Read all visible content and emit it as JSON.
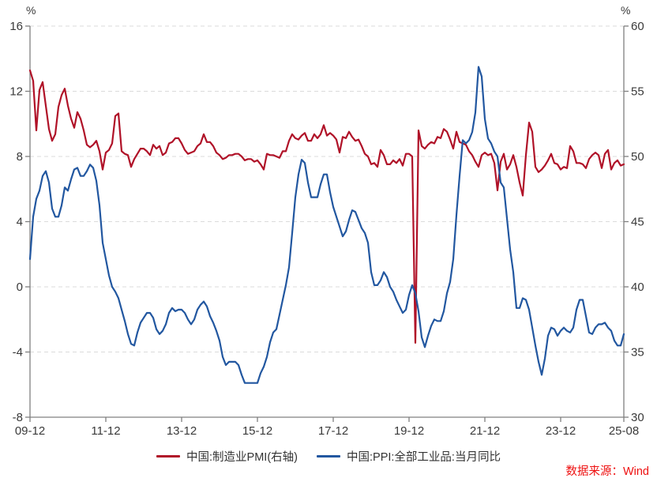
{
  "footer": {
    "source": "数据来源：Wind",
    "color": "#EE1111"
  },
  "chart_data": {
    "type": "line",
    "title": "",
    "x_start": "2009-12",
    "x_end": "2025-08",
    "x_frequency": "monthly",
    "grid": "horizontal-dashed",
    "legend_position": "bottom-center",
    "colors": {
      "grid": "#DBDBDB",
      "axis": "#808080",
      "tick_text": "#3a3a3a"
    },
    "left_axis": {
      "unit": "%",
      "min": -8,
      "max": 16,
      "ticks": [
        16,
        12,
        8,
        4,
        0,
        -4,
        -8
      ]
    },
    "right_axis": {
      "unit": "%",
      "min": 30,
      "max": 60,
      "ticks": [
        60,
        55,
        50,
        45,
        40,
        35,
        30
      ]
    },
    "x_ticks": [
      {
        "label": "09-12",
        "index": 0
      },
      {
        "label": "11-12",
        "index": 24
      },
      {
        "label": "13-12",
        "index": 48
      },
      {
        "label": "15-12",
        "index": 72
      },
      {
        "label": "17-12",
        "index": 96
      },
      {
        "label": "19-12",
        "index": 120
      },
      {
        "label": "21-12",
        "index": 144
      },
      {
        "label": "23-12",
        "index": 168
      },
      {
        "label": "25-08",
        "index": 188
      }
    ],
    "series": [
      {
        "name": "中国:制造业PMI(右轴)",
        "axis": "right",
        "color": "#B01228",
        "values": [
          56.6,
          55.8,
          52.0,
          55.1,
          55.7,
          53.9,
          52.1,
          51.2,
          51.7,
          53.8,
          54.7,
          55.2,
          53.9,
          52.9,
          52.2,
          53.4,
          52.9,
          52.0,
          50.9,
          50.7,
          50.9,
          51.2,
          50.4,
          49.0,
          50.3,
          50.5,
          51.0,
          53.1,
          53.3,
          50.4,
          50.2,
          50.1,
          49.2,
          49.8,
          50.2,
          50.6,
          50.6,
          50.4,
          50.1,
          50.9,
          50.6,
          50.8,
          50.1,
          50.3,
          51.0,
          51.1,
          51.4,
          51.4,
          51.0,
          50.5,
          50.2,
          50.3,
          50.4,
          50.8,
          51.0,
          51.7,
          51.1,
          51.1,
          50.8,
          50.3,
          50.1,
          49.8,
          49.9,
          50.1,
          50.1,
          50.2,
          50.2,
          50.0,
          49.7,
          49.8,
          49.8,
          49.6,
          49.7,
          49.4,
          49.0,
          50.2,
          50.1,
          50.1,
          50.0,
          49.9,
          50.4,
          50.4,
          51.2,
          51.7,
          51.4,
          51.3,
          51.6,
          51.8,
          51.2,
          51.2,
          51.7,
          51.4,
          51.7,
          52.4,
          51.6,
          51.8,
          51.6,
          51.3,
          50.3,
          51.5,
          51.4,
          51.9,
          51.5,
          51.2,
          51.3,
          50.8,
          50.2,
          50.0,
          49.4,
          49.5,
          49.2,
          50.5,
          50.1,
          49.4,
          49.4,
          49.7,
          49.5,
          49.8,
          49.3,
          50.2,
          50.2,
          50.0,
          35.7,
          52.0,
          50.8,
          50.6,
          50.9,
          51.1,
          51.0,
          51.5,
          51.4,
          52.1,
          51.9,
          51.3,
          50.6,
          51.9,
          51.1,
          51.0,
          50.9,
          50.4,
          50.1,
          49.6,
          49.2,
          50.1,
          50.3,
          50.1,
          50.2,
          49.5,
          47.4,
          49.6,
          50.2,
          49.0,
          49.4,
          50.1,
          49.2,
          48.0,
          47.0,
          50.1,
          52.6,
          51.9,
          49.2,
          48.8,
          49.0,
          49.3,
          49.7,
          50.2,
          49.5,
          49.4,
          49.0,
          49.2,
          49.1,
          50.8,
          50.4,
          49.5,
          49.5,
          49.4,
          49.1,
          49.8,
          50.1,
          50.3,
          50.1,
          49.1,
          50.2,
          50.5,
          49.0,
          49.5,
          49.7,
          49.3,
          49.4
        ]
      },
      {
        "name": "中国:PPI:全部工业品:当月同比",
        "axis": "left",
        "color": "#2257A0",
        "values": [
          1.7,
          4.3,
          5.4,
          5.9,
          6.8,
          7.1,
          6.4,
          4.8,
          4.3,
          4.3,
          5.0,
          6.1,
          5.9,
          6.6,
          7.2,
          7.3,
          6.8,
          6.8,
          7.1,
          7.5,
          7.3,
          6.5,
          5.0,
          2.7,
          1.7,
          0.7,
          0.0,
          -0.3,
          -0.7,
          -1.4,
          -2.1,
          -2.9,
          -3.5,
          -3.6,
          -2.8,
          -2.2,
          -1.9,
          -1.6,
          -1.6,
          -1.9,
          -2.6,
          -2.9,
          -2.7,
          -2.3,
          -1.6,
          -1.3,
          -1.5,
          -1.4,
          -1.4,
          -1.6,
          -2.0,
          -2.3,
          -2.0,
          -1.4,
          -1.1,
          -0.9,
          -1.2,
          -1.8,
          -2.2,
          -2.7,
          -3.3,
          -4.3,
          -4.8,
          -4.6,
          -4.6,
          -4.6,
          -4.8,
          -5.4,
          -5.9,
          -5.9,
          -5.9,
          -5.9,
          -5.9,
          -5.3,
          -4.9,
          -4.3,
          -3.4,
          -2.8,
          -2.6,
          -1.7,
          -0.8,
          0.1,
          1.2,
          3.3,
          5.5,
          6.9,
          7.8,
          7.6,
          6.4,
          5.5,
          5.5,
          5.5,
          6.3,
          6.9,
          6.9,
          5.8,
          4.9,
          4.3,
          3.7,
          3.1,
          3.4,
          4.1,
          4.7,
          4.6,
          4.1,
          3.6,
          3.3,
          2.7,
          0.9,
          0.1,
          0.1,
          0.4,
          0.9,
          0.6,
          0.0,
          -0.3,
          -0.8,
          -1.2,
          -1.6,
          -1.4,
          -0.5,
          0.1,
          -0.4,
          -1.5,
          -3.1,
          -3.7,
          -3.0,
          -2.4,
          -2.0,
          -2.1,
          -2.1,
          -1.5,
          -0.4,
          0.3,
          1.7,
          4.4,
          6.8,
          9.0,
          8.8,
          9.0,
          9.5,
          10.7,
          13.5,
          12.9,
          10.3,
          9.1,
          8.8,
          8.3,
          8.0,
          6.4,
          6.1,
          4.2,
          2.3,
          0.9,
          -1.3,
          -1.3,
          -0.7,
          -0.8,
          -1.4,
          -2.5,
          -3.6,
          -4.6,
          -5.4,
          -4.4,
          -3.0,
          -2.5,
          -2.6,
          -3.0,
          -2.7,
          -2.5,
          -2.7,
          -2.8,
          -2.5,
          -1.4,
          -0.8,
          -0.8,
          -1.8,
          -2.8,
          -2.9,
          -2.5,
          -2.3,
          -2.3,
          -2.2,
          -2.5,
          -2.7,
          -3.3,
          -3.6,
          -3.6,
          -2.9
        ]
      }
    ]
  }
}
